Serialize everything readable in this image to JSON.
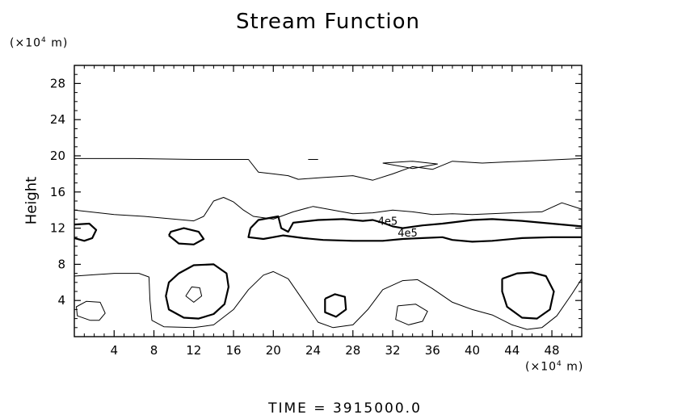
{
  "chart_data": {
    "type": "contour",
    "title": "Stream Function",
    "ylabel": "Height",
    "yunit_prefix": "(×10",
    "yunit_exp": "4",
    "yunit_suffix": " m)",
    "xunit_prefix": "(×10",
    "xunit_exp": "4",
    "xunit_suffix": " m)",
    "xlim": [
      0,
      51
    ],
    "ylim": [
      0,
      30
    ],
    "xticks": [
      4,
      8,
      12,
      16,
      20,
      24,
      28,
      32,
      36,
      40,
      44,
      48
    ],
    "yticks": [
      4,
      8,
      12,
      16,
      20,
      24,
      28
    ],
    "contour_labels": [
      {
        "text": "4e5",
        "x": 31.5,
        "y": 12.8
      },
      {
        "text": "4e5",
        "x": 33.5,
        "y": 11.5
      }
    ],
    "thin_contours": [
      [
        [
          0,
          19.7
        ],
        [
          6,
          19.7
        ],
        [
          12,
          19.6
        ],
        [
          17.5,
          19.6
        ],
        [
          18.5,
          18.2
        ],
        [
          20,
          18
        ],
        [
          21.5,
          17.8
        ],
        [
          22.5,
          17.4
        ],
        [
          25,
          17.6
        ],
        [
          28,
          17.8
        ],
        [
          30,
          17.3
        ],
        [
          32,
          18
        ],
        [
          34,
          18.8
        ],
        [
          36,
          18.5
        ],
        [
          38,
          19.4
        ],
        [
          41,
          19.2
        ],
        [
          45,
          19.4
        ],
        [
          51,
          19.7
        ]
      ],
      [
        [
          31,
          19.2
        ],
        [
          34,
          19.4
        ],
        [
          36.5,
          19.1
        ],
        [
          34,
          18.6
        ],
        [
          31,
          19.2
        ]
      ],
      [
        [
          23.5,
          19.6
        ],
        [
          24.5,
          19.6
        ]
      ],
      [
        [
          0,
          14
        ],
        [
          4,
          13.5
        ],
        [
          7,
          13.3
        ],
        [
          10,
          13
        ],
        [
          12,
          12.8
        ],
        [
          13,
          13.3
        ],
        [
          14,
          15
        ],
        [
          15,
          15.4
        ],
        [
          16,
          14.9
        ],
        [
          17,
          14
        ],
        [
          18,
          13.3
        ],
        [
          20,
          13
        ],
        [
          22,
          13.8
        ],
        [
          24,
          14.4
        ],
        [
          26,
          14
        ],
        [
          28,
          13.6
        ],
        [
          30,
          13.7
        ],
        [
          32,
          14
        ],
        [
          34,
          13.8
        ],
        [
          36,
          13.5
        ],
        [
          38,
          13.6
        ],
        [
          40,
          13.5
        ],
        [
          44,
          13.7
        ],
        [
          47,
          13.8
        ],
        [
          49,
          14.8
        ],
        [
          51,
          14.1
        ]
      ],
      [
        [
          0,
          6.7
        ],
        [
          4,
          7
        ],
        [
          6.5,
          7
        ],
        [
          7.5,
          6.6
        ],
        [
          7.6,
          4
        ],
        [
          7.8,
          1.8
        ],
        [
          9,
          1.1
        ],
        [
          12,
          1
        ],
        [
          14,
          1.3
        ],
        [
          16,
          3
        ],
        [
          17.5,
          5.2
        ],
        [
          19,
          6.8
        ],
        [
          20,
          7.2
        ],
        [
          21.5,
          6.4
        ],
        [
          23,
          4
        ],
        [
          24.5,
          1.6
        ],
        [
          26,
          1
        ],
        [
          28,
          1.3
        ],
        [
          29.5,
          3
        ],
        [
          31,
          5.2
        ],
        [
          33,
          6.2
        ],
        [
          34.5,
          6.3
        ],
        [
          36,
          5.3
        ],
        [
          38,
          3.8
        ],
        [
          40,
          3
        ],
        [
          42,
          2.4
        ],
        [
          44,
          1.3
        ],
        [
          45.5,
          0.8
        ],
        [
          47,
          1
        ],
        [
          48.5,
          2.3
        ],
        [
          50,
          4.7
        ],
        [
          51,
          6.4
        ]
      ],
      [
        [
          1.6,
          1.8
        ],
        [
          0.3,
          2.3
        ],
        [
          0.2,
          3.3
        ],
        [
          1.2,
          3.9
        ],
        [
          2.6,
          3.8
        ],
        [
          3.1,
          2.6
        ],
        [
          2.5,
          1.8
        ],
        [
          1.6,
          1.8
        ]
      ],
      [
        [
          32.5,
          3.4
        ],
        [
          34.3,
          3.6
        ],
        [
          35.5,
          2.8
        ],
        [
          35,
          1.7
        ],
        [
          33.6,
          1.3
        ],
        [
          32.3,
          1.9
        ],
        [
          32.5,
          3.4
        ]
      ],
      [
        [
          11.2,
          4.5
        ],
        [
          11.8,
          5.5
        ],
        [
          12.6,
          5.4
        ],
        [
          12.8,
          4.5
        ],
        [
          12,
          3.8
        ],
        [
          11.2,
          4.5
        ]
      ]
    ],
    "thick_contours": [
      [
        [
          0,
          12.4
        ],
        [
          1.5,
          12.5
        ],
        [
          2.2,
          11.8
        ],
        [
          1.8,
          10.9
        ],
        [
          1,
          10.6
        ],
        [
          0,
          10.9
        ]
      ],
      [
        [
          9.5,
          11.2
        ],
        [
          10.5,
          10.3
        ],
        [
          12,
          10.2
        ],
        [
          13,
          10.8
        ],
        [
          12.5,
          11.6
        ],
        [
          11,
          12
        ],
        [
          9.7,
          11.6
        ],
        [
          9.5,
          11.2
        ]
      ],
      [
        [
          17.7,
          12
        ],
        [
          18.5,
          12.9
        ],
        [
          20.5,
          13.3
        ],
        [
          20.8,
          12
        ],
        [
          21.5,
          11.6
        ],
        [
          22,
          12.6
        ],
        [
          24.5,
          12.9
        ],
        [
          27,
          13
        ],
        [
          29,
          12.8
        ],
        [
          30,
          12.9
        ],
        [
          31,
          12.6
        ],
        [
          32,
          12.2
        ],
        [
          33,
          12
        ],
        [
          35,
          12.3
        ],
        [
          37,
          12.5
        ],
        [
          40,
          12.9
        ],
        [
          42,
          13
        ],
        [
          45,
          12.8
        ],
        [
          48,
          12.5
        ],
        [
          51,
          12.2
        ]
      ],
      [
        [
          17.7,
          12
        ],
        [
          17.5,
          11
        ],
        [
          19,
          10.8
        ],
        [
          21,
          11.2
        ],
        [
          23,
          10.9
        ],
        [
          25,
          10.7
        ],
        [
          28,
          10.6
        ],
        [
          31,
          10.6
        ],
        [
          33,
          10.8
        ],
        [
          35,
          10.9
        ],
        [
          37,
          11
        ],
        [
          38,
          10.7
        ],
        [
          40,
          10.5
        ],
        [
          42,
          10.6
        ],
        [
          45,
          10.9
        ],
        [
          48,
          11
        ],
        [
          51,
          11
        ]
      ],
      [
        [
          10.5,
          7
        ],
        [
          12,
          7.9
        ],
        [
          14,
          8
        ],
        [
          15.3,
          7
        ],
        [
          15.5,
          5.5
        ],
        [
          15.1,
          3.6
        ],
        [
          14,
          2.5
        ],
        [
          12.5,
          2
        ],
        [
          11,
          2.1
        ],
        [
          9.5,
          3
        ],
        [
          9.2,
          4.5
        ],
        [
          9.5,
          6
        ],
        [
          10.5,
          7
        ]
      ],
      [
        [
          25.2,
          4.2
        ],
        [
          26.2,
          4.7
        ],
        [
          27.2,
          4.4
        ],
        [
          27.3,
          3
        ],
        [
          26.3,
          2.2
        ],
        [
          25.2,
          2.7
        ],
        [
          25.2,
          4.2
        ]
      ],
      [
        [
          43,
          6.4
        ],
        [
          44.5,
          7
        ],
        [
          46,
          7.1
        ],
        [
          47.4,
          6.7
        ],
        [
          48.2,
          5
        ],
        [
          47.8,
          3
        ],
        [
          46.5,
          2
        ],
        [
          45,
          2.1
        ],
        [
          43.5,
          3.3
        ],
        [
          43,
          5
        ],
        [
          43,
          6.4
        ]
      ]
    ],
    "time_label": "TIME  =  3915000.0"
  }
}
